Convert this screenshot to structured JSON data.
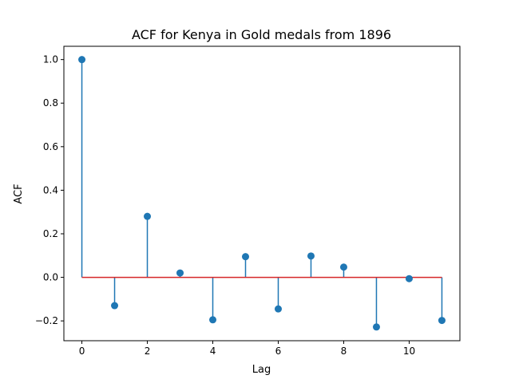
{
  "chart_data": {
    "type": "stem",
    "title": "ACF for Kenya in Gold medals from 1896",
    "xlabel": "Lag",
    "ylabel": "ACF",
    "xlim": [
      -0.55,
      11.55
    ],
    "ylim": [
      -0.291,
      1.061
    ],
    "x_ticks": [
      0,
      2,
      4,
      6,
      8,
      10
    ],
    "y_ticks": [
      -0.2,
      0.0,
      0.2,
      0.4,
      0.6,
      0.8,
      1.0
    ],
    "y_tick_labels": [
      "−0.2",
      "0.0",
      "0.2",
      "0.4",
      "0.6",
      "0.8",
      "1.0"
    ],
    "x": [
      0,
      1,
      2,
      3,
      4,
      5,
      6,
      7,
      8,
      9,
      10,
      11
    ],
    "values": [
      1.0,
      -0.13,
      0.28,
      0.02,
      -0.195,
      0.095,
      -0.145,
      0.098,
      0.047,
      -0.228,
      -0.006,
      -0.198
    ],
    "baseline": 0.0,
    "grid": false,
    "colors": {
      "stem": "#1f77b4",
      "marker": "#1f77b4",
      "baseline": "#d62728",
      "axes": "#000000"
    }
  }
}
